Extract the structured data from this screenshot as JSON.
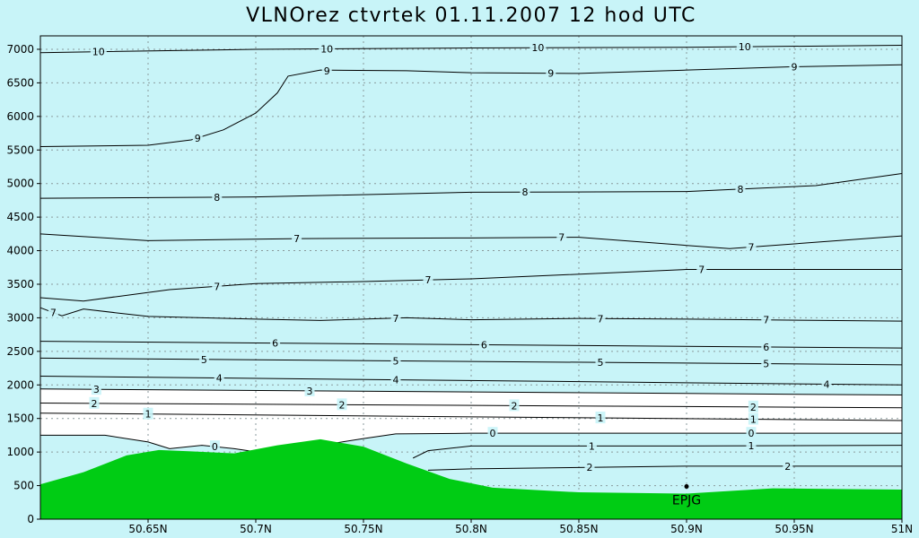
{
  "chart_data": {
    "type": "contour",
    "title": "VLNOrez ctvrtek 01.11.2007 12 hod UTC",
    "xlim": [
      50.6,
      51.0
    ],
    "ylim": [
      0,
      7200
    ],
    "x_ticks": [
      50.65,
      50.7,
      50.75,
      50.8,
      50.85,
      50.9,
      50.95,
      51.0
    ],
    "x_tick_labels": [
      "50.65N",
      "50.7N",
      "50.75N",
      "50.8N",
      "50.85N",
      "50.9N",
      "50.95N",
      "51N"
    ],
    "y_ticks": [
      0,
      500,
      1000,
      1500,
      2000,
      2500,
      3000,
      3500,
      4000,
      4500,
      5000,
      5500,
      6000,
      6500,
      7000
    ],
    "y_tick_labels": [
      "0",
      "500",
      "1000",
      "1500",
      "2000",
      "2500",
      "3000",
      "3500",
      "4000",
      "4500",
      "5000",
      "5500",
      "6000",
      "6500",
      "7000"
    ],
    "grid": true,
    "colors": {
      "background": "#c8f4f8",
      "terrain": "#00cc14",
      "white_zone": "#ffffff",
      "contour": "#000000"
    },
    "station": {
      "name": "EPJG",
      "x": 50.9,
      "y": 380
    },
    "terrain": [
      [
        50.6,
        520
      ],
      [
        50.62,
        700
      ],
      [
        50.64,
        950
      ],
      [
        50.655,
        1030
      ],
      [
        50.67,
        1010
      ],
      [
        50.69,
        980
      ],
      [
        50.71,
        1100
      ],
      [
        50.73,
        1190
      ],
      [
        50.75,
        1080
      ],
      [
        50.77,
        830
      ],
      [
        50.79,
        600
      ],
      [
        50.81,
        470
      ],
      [
        50.85,
        400
      ],
      [
        50.9,
        380
      ],
      [
        50.94,
        460
      ],
      [
        50.97,
        450
      ],
      [
        51.0,
        440
      ]
    ],
    "contours": [
      {
        "label": "10",
        "points": [
          [
            50.6,
            6950
          ],
          [
            50.7,
            7000
          ],
          [
            50.8,
            7020
          ],
          [
            50.9,
            7030
          ],
          [
            51.0,
            7060
          ]
        ],
        "labels_at": [
          50.627,
          50.733,
          50.831,
          50.927
        ]
      },
      {
        "label": "9",
        "points": [
          [
            50.77,
            6680
          ],
          [
            50.8,
            6650
          ],
          [
            50.85,
            6640
          ],
          [
            50.9,
            6690
          ],
          [
            50.95,
            6740
          ],
          [
            51.0,
            6770
          ]
        ],
        "labels_at": [
          50.733,
          50.837,
          50.95
        ]
      },
      {
        "label": "9",
        "points": [
          [
            50.6,
            5550
          ],
          [
            50.65,
            5570
          ],
          [
            50.67,
            5650
          ],
          [
            50.685,
            5800
          ],
          [
            50.7,
            6050
          ],
          [
            50.71,
            6350
          ],
          [
            50.715,
            6600
          ],
          [
            50.73,
            6690
          ],
          [
            50.77,
            6680
          ]
        ],
        "labels_at": [
          50.673
        ]
      },
      {
        "label": "8",
        "points": [
          [
            50.6,
            4780
          ],
          [
            50.7,
            4800
          ],
          [
            50.8,
            4870
          ],
          [
            50.9,
            4880
          ],
          [
            50.96,
            4970
          ],
          [
            51.0,
            5150
          ]
        ],
        "labels_at": [
          50.682,
          50.825,
          50.925
        ]
      },
      {
        "label": "7",
        "points": [
          [
            50.6,
            4250
          ],
          [
            50.65,
            4150
          ],
          [
            50.72,
            4180
          ],
          [
            50.8,
            4190
          ],
          [
            50.85,
            4200
          ],
          [
            50.92,
            4030
          ],
          [
            51.0,
            4220
          ]
        ],
        "labels_at": [
          50.719,
          50.842,
          50.93
        ]
      },
      {
        "label": "7",
        "points": [
          [
            50.6,
            3300
          ],
          [
            50.62,
            3250
          ],
          [
            50.66,
            3420
          ],
          [
            50.7,
            3510
          ],
          [
            50.75,
            3540
          ],
          [
            50.8,
            3580
          ],
          [
            50.9,
            3720
          ],
          [
            51.0,
            3720
          ]
        ],
        "labels_at": [
          50.682,
          50.78,
          50.907
        ]
      },
      {
        "label": "7",
        "points": [
          [
            50.6,
            3150
          ],
          [
            50.61,
            3030
          ],
          [
            50.62,
            3130
          ],
          [
            50.65,
            3020
          ],
          [
            50.7,
            2980
          ],
          [
            50.73,
            2960
          ],
          [
            50.77,
            3000
          ],
          [
            50.8,
            2970
          ],
          [
            50.85,
            2990
          ],
          [
            50.9,
            2980
          ],
          [
            51.0,
            2950
          ]
        ],
        "labels_at": [
          50.606,
          50.765,
          50.86,
          50.937
        ]
      },
      {
        "label": "6",
        "points": [
          [
            50.6,
            2650
          ],
          [
            51.0,
            2550
          ]
        ],
        "labels_at": [
          50.709,
          50.806,
          50.937
        ]
      },
      {
        "label": "5",
        "points": [
          [
            50.6,
            2400
          ],
          [
            51.0,
            2300
          ]
        ],
        "labels_at": [
          50.676,
          50.765,
          50.86,
          50.937
        ]
      },
      {
        "label": "4",
        "points": [
          [
            50.6,
            2130
          ],
          [
            51.0,
            2000
          ]
        ],
        "labels_at": [
          50.683,
          50.765,
          50.965
        ]
      },
      {
        "label": "3",
        "points": [
          [
            50.6,
            1940
          ],
          [
            51.0,
            1850
          ]
        ],
        "labels_at": [
          50.626,
          50.725
        ]
      },
      {
        "label": "2",
        "points": [
          [
            50.6,
            1730
          ],
          [
            51.0,
            1660
          ]
        ],
        "labels_at": [
          50.625,
          50.74,
          50.82,
          50.931
        ]
      },
      {
        "label": "1",
        "points": [
          [
            50.6,
            1580
          ],
          [
            51.0,
            1470
          ]
        ],
        "labels_at": [
          50.65,
          50.86,
          50.931
        ]
      },
      {
        "label": "0",
        "points": [
          [
            50.6,
            1250
          ],
          [
            50.63,
            1250
          ],
          [
            50.65,
            1150
          ],
          [
            50.66,
            1050
          ],
          [
            50.675,
            1100
          ],
          [
            50.69,
            1050
          ],
          [
            50.705,
            980
          ],
          [
            50.73,
            1100
          ],
          [
            50.75,
            1200
          ],
          [
            50.765,
            1270
          ],
          [
            50.8,
            1280
          ],
          [
            50.9,
            1280
          ],
          [
            51.0,
            1280
          ]
        ],
        "labels_at": [
          50.681,
          50.81,
          50.93
        ]
      },
      {
        "label": "1",
        "points": [
          [
            50.773,
            910
          ],
          [
            50.78,
            1020
          ],
          [
            50.8,
            1090
          ],
          [
            50.9,
            1090
          ],
          [
            51.0,
            1100
          ]
        ],
        "labels_at": [
          50.856,
          50.93
        ]
      },
      {
        "label": "2",
        "points": [
          [
            50.78,
            730
          ],
          [
            50.8,
            750
          ],
          [
            50.85,
            770
          ],
          [
            50.9,
            790
          ],
          [
            51.0,
            790
          ]
        ],
        "labels_at": [
          50.855,
          50.947
        ]
      }
    ]
  }
}
